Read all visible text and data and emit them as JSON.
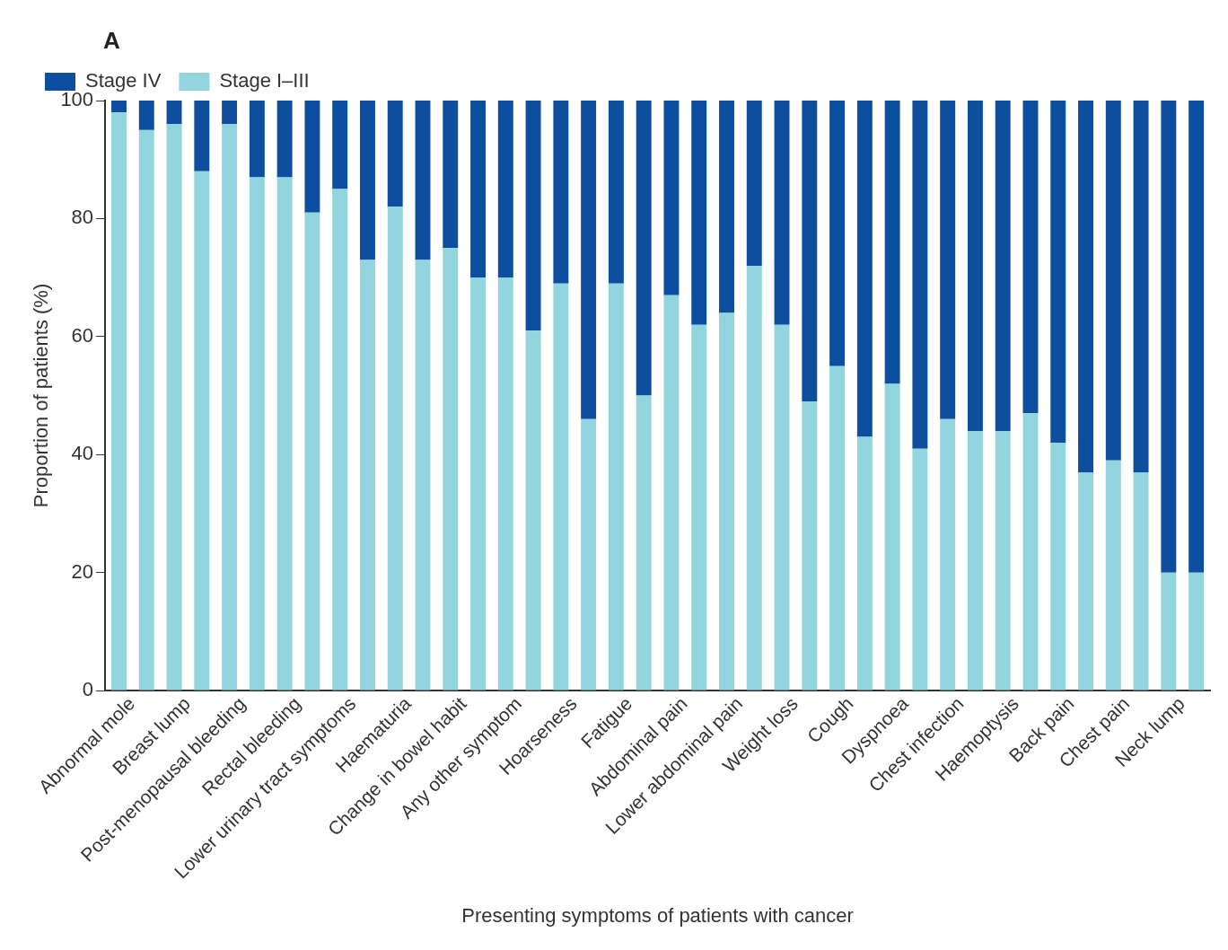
{
  "chart_data": {
    "type": "bar",
    "stacked": true,
    "categories": [
      "Abnormal mole",
      null,
      "Breast lump",
      null,
      "Post-menopausal bleeding",
      null,
      "Rectal bleeding",
      null,
      "Lower urinary tract symptoms",
      null,
      "Haematuria",
      null,
      "Change in bowel habit",
      null,
      "Any other symptom",
      null,
      "Hoarseness",
      null,
      "Fatigue",
      null,
      "Abdominal pain",
      null,
      "Lower abdominal pain",
      null,
      "Weight loss",
      null,
      "Cough",
      null,
      "Dyspnoea",
      null,
      "Chest infection",
      null,
      "Haemoptysis",
      null,
      "Back pain",
      null,
      "Chest pain",
      null,
      "Neck lump",
      null
    ],
    "series": [
      {
        "name": "Stage I–III",
        "color": "#93d5df",
        "values": [
          98,
          95,
          96,
          88,
          96,
          87,
          87,
          81,
          85,
          73,
          82,
          73,
          75,
          70,
          70,
          61,
          69,
          46,
          69,
          50,
          67,
          62,
          64,
          72,
          62,
          49,
          55,
          43,
          52,
          41,
          46,
          44,
          44,
          47,
          42,
          37,
          39,
          37,
          20,
          20
        ]
      },
      {
        "name": "Stage IV",
        "color": "#0d4f9e",
        "values": [
          2,
          5,
          4,
          12,
          4,
          13,
          13,
          19,
          15,
          27,
          18,
          27,
          25,
          30,
          30,
          39,
          31,
          54,
          31,
          50,
          33,
          38,
          36,
          28,
          38,
          51,
          45,
          57,
          48,
          59,
          54,
          56,
          56,
          53,
          58,
          63,
          61,
          63,
          80,
          80
        ]
      }
    ],
    "ylim": [
      0,
      100
    ],
    "yticks": [
      0,
      20,
      40,
      60,
      80,
      100
    ],
    "grid": false,
    "legend": "top left",
    "xlabel": "Presenting symptoms of patients with cancer",
    "ylabel": "Proportion of patients (%)",
    "annotations": [
      "A"
    ]
  }
}
